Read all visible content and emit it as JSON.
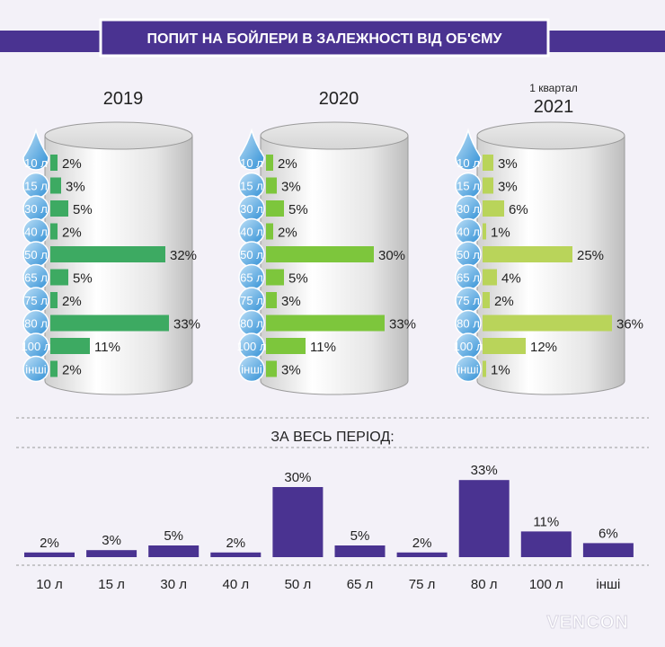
{
  "title": "ПОПИТ НА БОЙЛЕРИ В ЗАЛЕЖНОСТІ ВІД ОБ'ЄМУ",
  "colors": {
    "accent": "#4a3391",
    "bar_2019": "#3daa62",
    "bar_2020": "#7dc63c",
    "bar_2021": "#b9d45a",
    "drop": "#2f8fd5",
    "drop_light": "#a9d3f2",
    "summary_bar": "#4a3391"
  },
  "chart_data": [
    {
      "type": "bar",
      "orientation": "horizontal",
      "title": "2019",
      "categories": [
        "10 л",
        "15 л",
        "30 л",
        "40 л",
        "50 л",
        "65 л",
        "75 л",
        "80 л",
        "100 л",
        "інші"
      ],
      "values": [
        2,
        3,
        5,
        2,
        32,
        5,
        2,
        33,
        11,
        2
      ],
      "value_labels": [
        "2%",
        "3%",
        "5%",
        "2%",
        "32%",
        "5%",
        "2%",
        "33%",
        "11%",
        "2%"
      ],
      "unit": "%"
    },
    {
      "type": "bar",
      "orientation": "horizontal",
      "title": "2020",
      "categories": [
        "10 л",
        "15 л",
        "30 л",
        "40 л",
        "50 л",
        "65 л",
        "75 л",
        "80 л",
        "100 л",
        "інші"
      ],
      "values": [
        2,
        3,
        5,
        2,
        30,
        5,
        3,
        33,
        11,
        3
      ],
      "value_labels": [
        "2%",
        "3%",
        "5%",
        "2%",
        "30%",
        "5%",
        "3%",
        "33%",
        "11%",
        "3%"
      ],
      "unit": "%"
    },
    {
      "type": "bar",
      "orientation": "horizontal",
      "title": "2021",
      "subtitle": "1 квартал",
      "categories": [
        "10 л",
        "15 л",
        "30 л",
        "40 л",
        "50 л",
        "65 л",
        "75 л",
        "80 л",
        "100 л",
        "інші"
      ],
      "values": [
        3,
        3,
        6,
        1,
        25,
        4,
        2,
        36,
        12,
        1
      ],
      "value_labels": [
        "3%",
        "3%",
        "6%",
        "1%",
        "25%",
        "4%",
        "2%",
        "36%",
        "12%",
        "1%"
      ],
      "unit": "%"
    },
    {
      "type": "bar",
      "orientation": "vertical",
      "title": "ЗА ВЕСЬ ПЕРІОД:",
      "categories": [
        "10 л",
        "15 л",
        "30 л",
        "40 л",
        "50 л",
        "65 л",
        "75 л",
        "80 л",
        "100 л",
        "інші"
      ],
      "values": [
        2,
        3,
        5,
        2,
        30,
        5,
        2,
        33,
        11,
        6
      ],
      "value_labels": [
        "2%",
        "3%",
        "5%",
        "2%",
        "30%",
        "5%",
        "2%",
        "33%",
        "11%",
        "6%"
      ],
      "unit": "%"
    }
  ],
  "logo": {
    "text": "VENCON"
  }
}
